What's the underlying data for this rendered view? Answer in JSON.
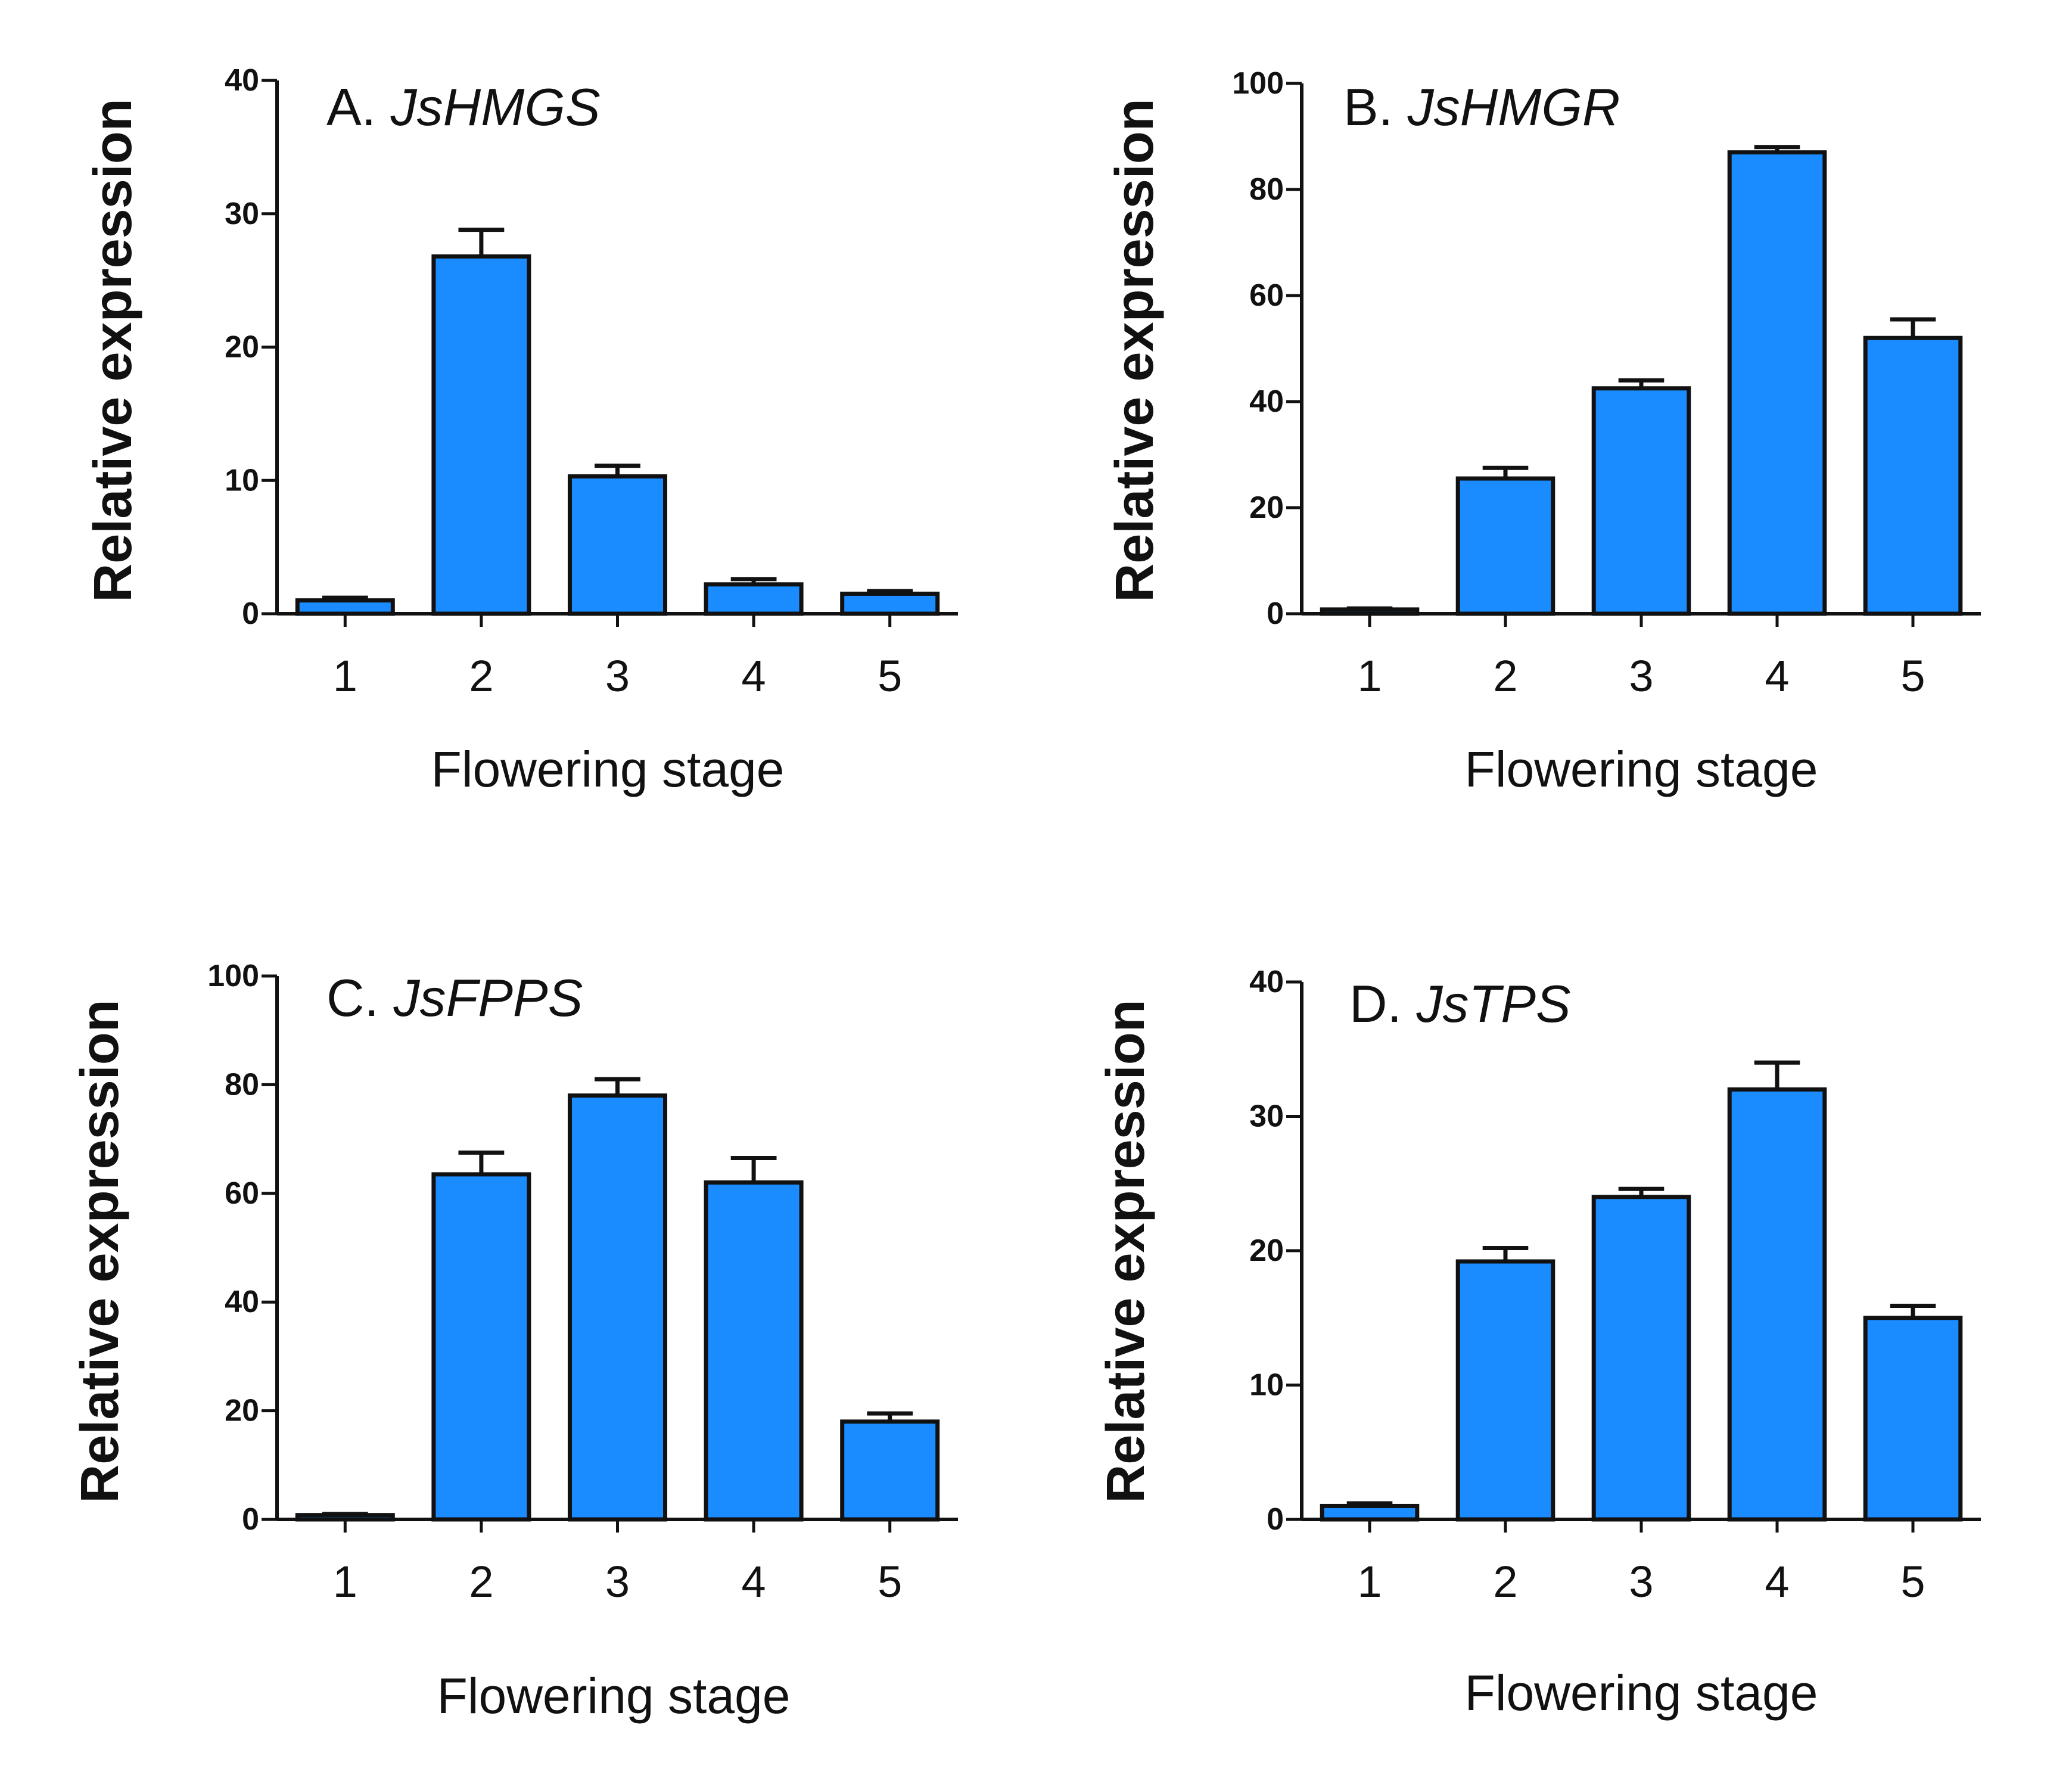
{
  "colors": {
    "bar": "#1a8cff",
    "outline": "#111111",
    "background": "#ffffff"
  },
  "chart_data": [
    {
      "type": "bar",
      "panel": "A.",
      "gene": "JsHMGS",
      "title": "A. JsHMGS",
      "xlabel": "Flowering stage",
      "ylabel": "Relative expression",
      "categories": [
        "1",
        "2",
        "3",
        "4",
        "5"
      ],
      "values": [
        1,
        26.8,
        10.3,
        2.2,
        1.5
      ],
      "errors": [
        0.2,
        2.0,
        0.8,
        0.4,
        0.2
      ],
      "ylim": [
        0,
        40
      ],
      "yticks": [
        0,
        10,
        20,
        30,
        40
      ],
      "grid": false
    },
    {
      "type": "bar",
      "panel": "B.",
      "gene": "JsHMGR",
      "title": "B. JsHMGR",
      "xlabel": "Flowering stage",
      "ylabel": "Relative expression",
      "categories": [
        "1",
        "2",
        "3",
        "4",
        "5"
      ],
      "values": [
        0.8,
        25.5,
        42.5,
        87,
        52
      ],
      "errors": [
        0.2,
        2.0,
        1.5,
        1.0,
        3.5
      ],
      "ylim": [
        0,
        100
      ],
      "yticks": [
        0,
        20,
        40,
        60,
        80,
        100
      ],
      "grid": false
    },
    {
      "type": "bar",
      "panel": "C.",
      "gene": "JsFPPS",
      "title": "C. JsFPPS",
      "xlabel": "Flowering stage",
      "ylabel": "Relative expression",
      "categories": [
        "1",
        "2",
        "3",
        "4",
        "5"
      ],
      "values": [
        0.8,
        63.5,
        78,
        62,
        18
      ],
      "errors": [
        0.2,
        4.0,
        3.0,
        4.5,
        1.5
      ],
      "ylim": [
        0,
        100
      ],
      "yticks": [
        0,
        20,
        40,
        60,
        80,
        100
      ],
      "grid": false
    },
    {
      "type": "bar",
      "panel": "D.",
      "gene": "JsTPS",
      "title": "D. JsTPS",
      "xlabel": "Flowering stage",
      "ylabel": "Relative expression",
      "categories": [
        "1",
        "2",
        "3",
        "4",
        "5"
      ],
      "values": [
        1,
        19.2,
        24,
        32,
        15
      ],
      "errors": [
        0.2,
        1.0,
        0.6,
        2.0,
        0.9
      ],
      "ylim": [
        0,
        40
      ],
      "yticks": [
        0,
        10,
        20,
        30,
        40
      ],
      "grid": false
    }
  ]
}
